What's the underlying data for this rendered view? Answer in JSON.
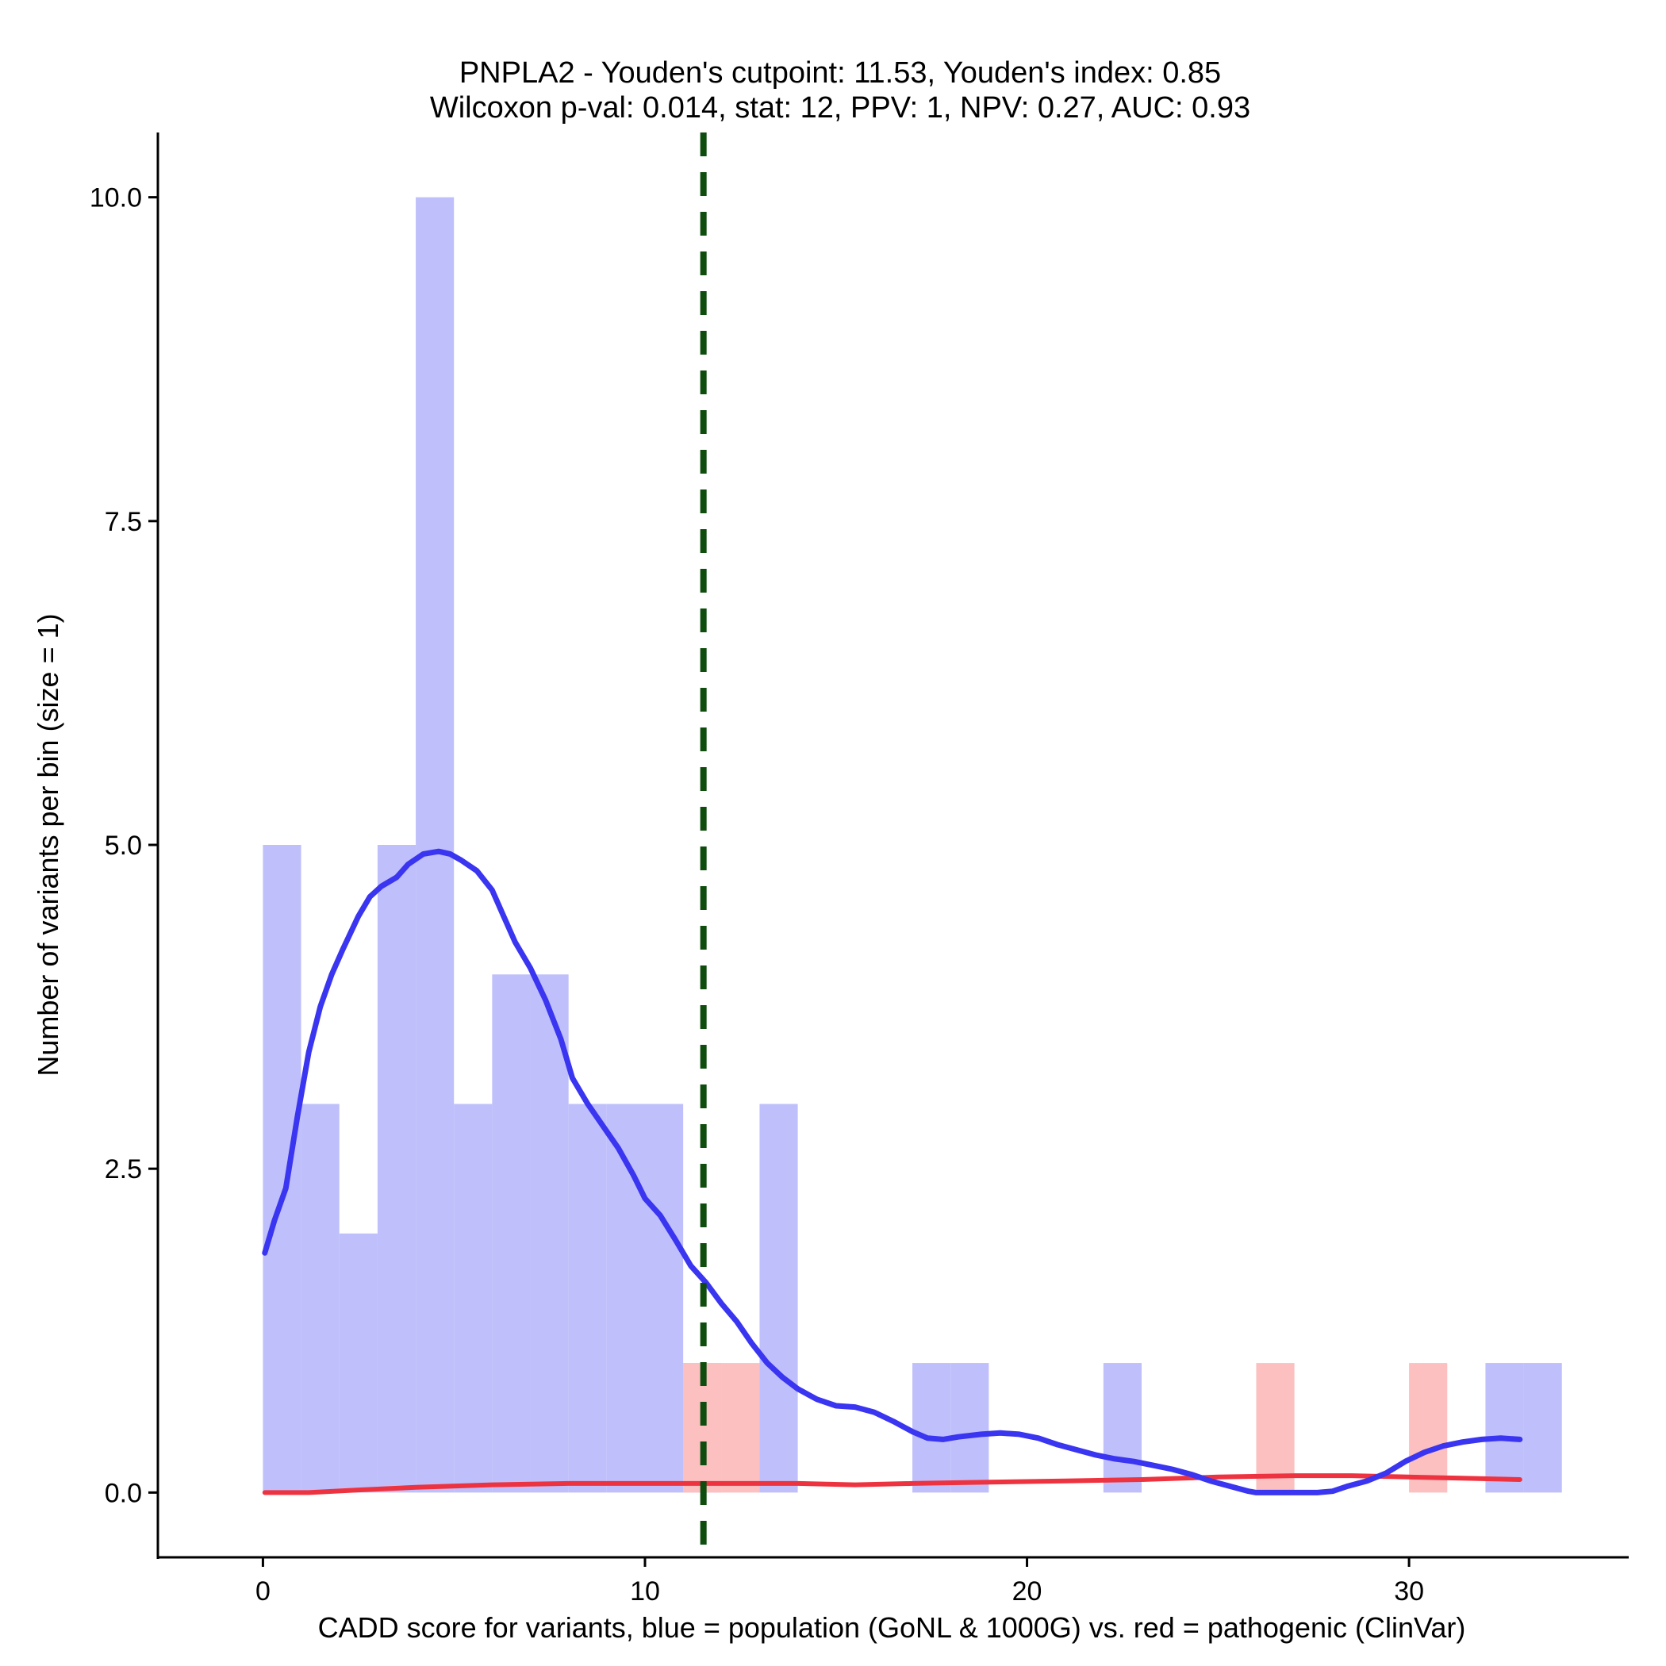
{
  "chart_data": {
    "type": "bar",
    "title_line1": "PNPLA2 - Youden's cutpoint: 11.53, Youden's index: 0.85",
    "title_line2": "Wilcoxon p-val: 0.014, stat: 12, PPV: 1, NPV: 0.27, AUC: 0.93",
    "xlabel": "CADD score for variants, blue = population (GoNL & 1000G) vs. red = pathogenic (ClinVar)",
    "ylabel": "Number of variants per bin (size = 1)",
    "xlim": [
      -2.75,
      35.75
    ],
    "ylim": [
      -0.5,
      10.5
    ],
    "x_ticks": [
      0,
      10,
      20,
      30
    ],
    "x_tick_labels": [
      "0",
      "10",
      "20",
      "30"
    ],
    "y_ticks": [
      0,
      2.5,
      5,
      7.5,
      10
    ],
    "y_tick_labels": [
      "0.0",
      "2.5",
      "5.0",
      "7.5",
      "10.0"
    ],
    "bin_width": 1,
    "cutpoint": 11.53,
    "colors": {
      "population_bar": "#bfbffb",
      "pathogenic_bar": "#fcc0c0",
      "population_line": "#3a35f0",
      "pathogenic_line": "#ee3340",
      "cutpoint_line": "#0e4d0e"
    },
    "series": [
      {
        "name": "population (GoNL & 1000G)",
        "bins": [
          {
            "x0": 0,
            "count": 5
          },
          {
            "x0": 1,
            "count": 3
          },
          {
            "x0": 2,
            "count": 2
          },
          {
            "x0": 3,
            "count": 5
          },
          {
            "x0": 4,
            "count": 10
          },
          {
            "x0": 5,
            "count": 3
          },
          {
            "x0": 6,
            "count": 4
          },
          {
            "x0": 7,
            "count": 4
          },
          {
            "x0": 8,
            "count": 3
          },
          {
            "x0": 9,
            "count": 3
          },
          {
            "x0": 10,
            "count": 3
          },
          {
            "x0": 11,
            "count": 1
          },
          {
            "x0": 13,
            "count": 3
          },
          {
            "x0": 17,
            "count": 1
          },
          {
            "x0": 18,
            "count": 1
          },
          {
            "x0": 22,
            "count": 1
          },
          {
            "x0": 32,
            "count": 1
          },
          {
            "x0": 33,
            "count": 1
          }
        ],
        "density_curve": [
          [
            0.05,
            1.85
          ],
          [
            0.3,
            2.1
          ],
          [
            0.6,
            2.35
          ],
          [
            0.9,
            2.9
          ],
          [
            1.2,
            3.4
          ],
          [
            1.5,
            3.75
          ],
          [
            1.8,
            4.0
          ],
          [
            2.1,
            4.2
          ],
          [
            2.5,
            4.45
          ],
          [
            2.8,
            4.6
          ],
          [
            3.1,
            4.68
          ],
          [
            3.5,
            4.75
          ],
          [
            3.8,
            4.85
          ],
          [
            4.2,
            4.93
          ],
          [
            4.6,
            4.95
          ],
          [
            4.9,
            4.93
          ],
          [
            5.2,
            4.88
          ],
          [
            5.6,
            4.8
          ],
          [
            6.0,
            4.65
          ],
          [
            6.3,
            4.45
          ],
          [
            6.6,
            4.25
          ],
          [
            7.0,
            4.05
          ],
          [
            7.4,
            3.8
          ],
          [
            7.8,
            3.5
          ],
          [
            8.1,
            3.2
          ],
          [
            8.5,
            3.0
          ],
          [
            8.9,
            2.83
          ],
          [
            9.3,
            2.66
          ],
          [
            9.7,
            2.45
          ],
          [
            10.0,
            2.27
          ],
          [
            10.4,
            2.14
          ],
          [
            10.8,
            1.95
          ],
          [
            11.2,
            1.75
          ],
          [
            11.6,
            1.62
          ],
          [
            12.0,
            1.46
          ],
          [
            12.4,
            1.32
          ],
          [
            12.8,
            1.15
          ],
          [
            13.2,
            1.0
          ],
          [
            13.6,
            0.89
          ],
          [
            14.0,
            0.8
          ],
          [
            14.5,
            0.72
          ],
          [
            15.0,
            0.67
          ],
          [
            15.5,
            0.66
          ],
          [
            16.0,
            0.62
          ],
          [
            16.5,
            0.55
          ],
          [
            17.0,
            0.47
          ],
          [
            17.4,
            0.42
          ],
          [
            17.8,
            0.41
          ],
          [
            18.2,
            0.43
          ],
          [
            18.8,
            0.45
          ],
          [
            19.3,
            0.46
          ],
          [
            19.8,
            0.45
          ],
          [
            20.3,
            0.42
          ],
          [
            20.8,
            0.37
          ],
          [
            21.3,
            0.33
          ],
          [
            21.8,
            0.29
          ],
          [
            22.3,
            0.26
          ],
          [
            22.8,
            0.24
          ],
          [
            23.3,
            0.21
          ],
          [
            23.8,
            0.18
          ],
          [
            24.3,
            0.14
          ],
          [
            24.8,
            0.09
          ],
          [
            25.3,
            0.05
          ],
          [
            25.8,
            0.01
          ],
          [
            26.0,
            0.0
          ],
          [
            27.0,
            0.0
          ],
          [
            27.6,
            0.0
          ],
          [
            28.0,
            0.01
          ],
          [
            28.4,
            0.05
          ],
          [
            28.9,
            0.09
          ],
          [
            29.4,
            0.15
          ],
          [
            29.9,
            0.24
          ],
          [
            30.4,
            0.31
          ],
          [
            30.9,
            0.36
          ],
          [
            31.4,
            0.39
          ],
          [
            31.9,
            0.41
          ],
          [
            32.4,
            0.42
          ],
          [
            32.9,
            0.41
          ]
        ]
      },
      {
        "name": "pathogenic (ClinVar)",
        "bins": [
          {
            "x0": 11,
            "count": 1
          },
          {
            "x0": 12,
            "count": 1
          },
          {
            "x0": 26,
            "count": 1
          },
          {
            "x0": 30,
            "count": 1
          }
        ],
        "density_curve": [
          [
            0.05,
            0.0
          ],
          [
            1.2,
            0.0
          ],
          [
            2.5,
            0.02
          ],
          [
            4.0,
            0.04
          ],
          [
            6.0,
            0.06
          ],
          [
            8.0,
            0.07
          ],
          [
            10.0,
            0.07
          ],
          [
            12.0,
            0.07
          ],
          [
            14.0,
            0.07
          ],
          [
            15.5,
            0.06
          ],
          [
            17.0,
            0.07
          ],
          [
            19.0,
            0.08
          ],
          [
            21.0,
            0.09
          ],
          [
            23.0,
            0.1
          ],
          [
            25.0,
            0.12
          ],
          [
            27.0,
            0.13
          ],
          [
            28.5,
            0.13
          ],
          [
            30.0,
            0.12
          ],
          [
            31.5,
            0.11
          ],
          [
            32.9,
            0.1
          ]
        ]
      }
    ]
  }
}
